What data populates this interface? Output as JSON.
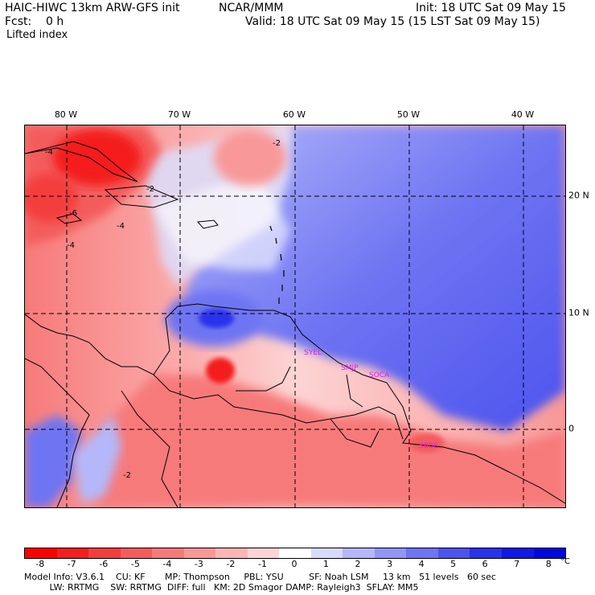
{
  "header": {
    "model_title": "HAIC-HIWC 13km ARW-GFS init",
    "center": "NCAR/MMM",
    "init": "Init: 18 UTC Sat 09 May 15",
    "forecast": "Fcst:    0 h",
    "valid": "Valid: 18 UTC Sat 09 May 15 (15 LST Sat 09 May 15)",
    "field": "Lifted index"
  },
  "map": {
    "lon_labels": [
      "80 W",
      "70 W",
      "60 W",
      "50 W",
      "40 W"
    ],
    "lat_labels": [
      "20 N",
      "10 N",
      "0"
    ],
    "stations": [
      "SYEL",
      "SMJP",
      "SOCA",
      "SBBE"
    ],
    "contour_labels": [
      "-2",
      "-4",
      "-6",
      "-4",
      "-2",
      "-4",
      "-2"
    ]
  },
  "colorbar": {
    "ticks": [
      "-8",
      "-7",
      "-6",
      "-5",
      "-4",
      "-3",
      "-2",
      "-1",
      "0",
      "1",
      "2",
      "3",
      "4",
      "5",
      "6",
      "7",
      "8"
    ],
    "unit": "°C",
    "colors": [
      "#ff0000",
      "#f41f1f",
      "#f43d3d",
      "#f45c5c",
      "#f77a7a",
      "#f99898",
      "#fbb5b5",
      "#fdd4d4",
      "#ffffff",
      "#d8dbfd",
      "#b4b8fa",
      "#9196f6",
      "#6e74f2",
      "#4c53ee",
      "#2a32ea",
      "#1018e6",
      "#0008e0"
    ]
  },
  "model_info": {
    "line1": "Model Info: V3.6.1    CU: KF       MP: Thompson     PBL: YSU         SF: Noah LSM     13 km   51 levels   60 sec",
    "line2": "         LW: RRTMG    SW: RRTMG  DIFF: full   KM: 2D Smagor DAMP: Rayleigh3  SFLAY: MM5"
  }
}
